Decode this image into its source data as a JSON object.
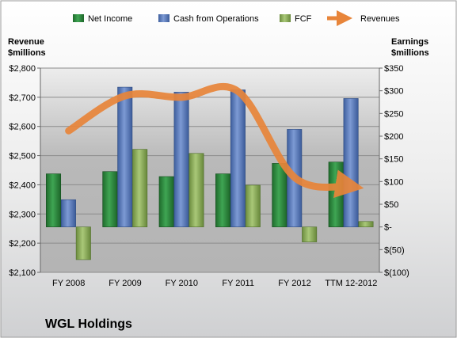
{
  "chart_data": {
    "type": "bar",
    "title": "WGL Holdings",
    "categories": [
      "FY 2008",
      "FY 2009",
      "FY 2010",
      "FY 2011",
      "FY 2012",
      "TTM 12-2012"
    ],
    "left_axis": {
      "label_line1": "Revenue",
      "label_line2": "$millions",
      "ylim": [
        2100,
        2800
      ],
      "ticks": [
        2100,
        2200,
        2300,
        2400,
        2500,
        2600,
        2700,
        2800
      ],
      "tick_labels": [
        "$2,100",
        "$2,200",
        "$2,300",
        "$2,400",
        "$2,500",
        "$2,600",
        "$2,700",
        "$2,800"
      ]
    },
    "right_axis": {
      "label_line1": "Earnings",
      "label_line2": "$millions",
      "ylim": [
        -100,
        350
      ],
      "ticks": [
        -100,
        -50,
        0,
        50,
        100,
        150,
        200,
        250,
        300,
        350
      ],
      "tick_labels": [
        "$(100)",
        "$(50)",
        "$-",
        "$50",
        "$100",
        "$150",
        "$200",
        "$250",
        "$300",
        "$350"
      ]
    },
    "series": [
      {
        "name": "Net Income",
        "axis": "right",
        "kind": "bar",
        "color": "#2e8b3e",
        "values": [
          117,
          122,
          111,
          117,
          140,
          143
        ]
      },
      {
        "name": "Cash from Operations",
        "axis": "right",
        "kind": "bar",
        "color": "#5b7fc0",
        "values": [
          60,
          308,
          297,
          302,
          215,
          283
        ]
      },
      {
        "name": "FCF",
        "axis": "right",
        "kind": "bar",
        "color": "#8fb35a",
        "values": [
          -72,
          171,
          162,
          92,
          -33,
          12
        ]
      },
      {
        "name": "Revenues",
        "axis": "left",
        "kind": "line",
        "color": "#e8853a",
        "values": [
          2585,
          2705,
          2700,
          2720,
          2425,
          2395
        ]
      }
    ],
    "legend": {
      "position": "top"
    }
  }
}
